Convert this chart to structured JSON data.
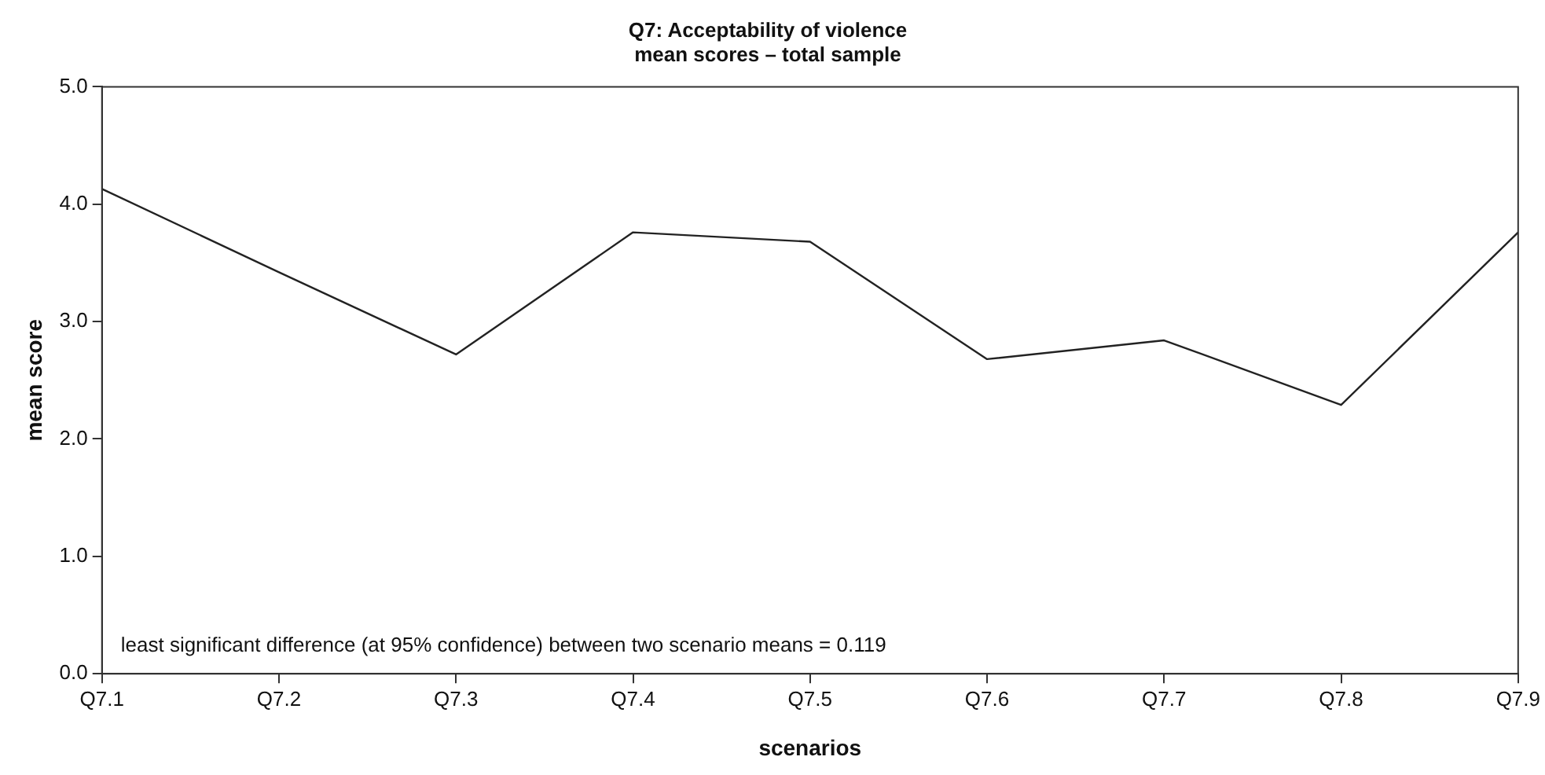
{
  "chart_data": {
    "type": "line",
    "title": "Q7: Acceptability of violence",
    "subtitle": "mean scores – total sample",
    "xlabel": "scenarios",
    "ylabel": "mean score",
    "categories": [
      "Q7.1",
      "Q7.2",
      "Q7.3",
      "Q7.4",
      "Q7.5",
      "Q7.6",
      "Q7.7",
      "Q7.8",
      "Q7.9"
    ],
    "series": [
      {
        "color": "#222222",
        "values": [
          4.13,
          3.42,
          2.72,
          3.76,
          3.68,
          2.68,
          2.84,
          2.29,
          3.76
        ]
      }
    ],
    "ylim": [
      0,
      5
    ],
    "yticks": [
      {
        "value": 0,
        "label": "0.0"
      },
      {
        "value": 1,
        "label": "1.0"
      },
      {
        "value": 2,
        "label": "2.0"
      },
      {
        "value": 3,
        "label": "3.0"
      },
      {
        "value": 4,
        "label": "4.0"
      },
      {
        "value": 5,
        "label": "5.0"
      }
    ],
    "grid": false,
    "legend": false,
    "marker": "none",
    "line_style": "solid",
    "annotations": [
      "least significant difference (at 95% confidence) between two scenario means = 0.119"
    ]
  }
}
